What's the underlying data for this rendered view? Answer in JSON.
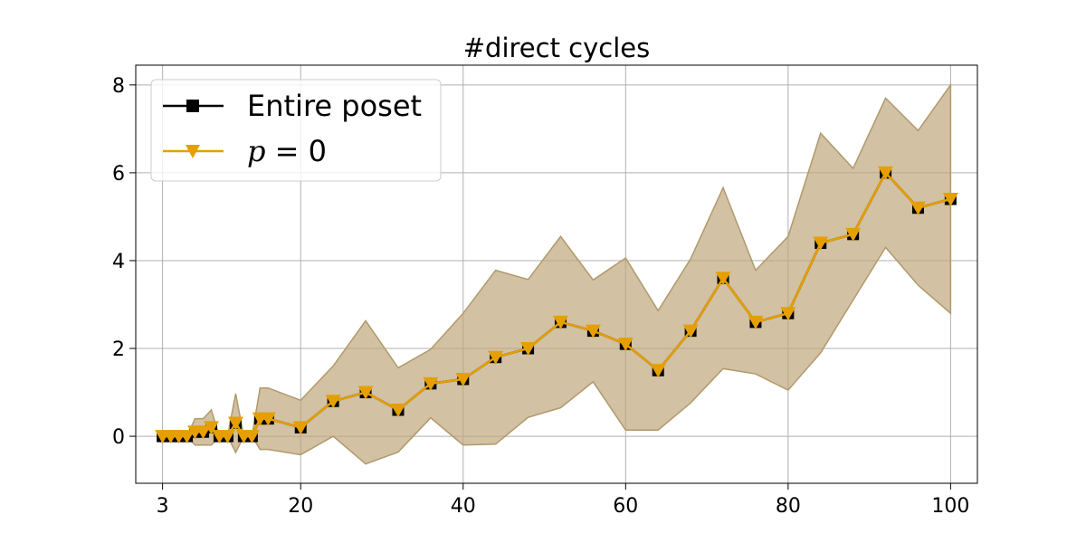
{
  "chart_data": {
    "type": "line",
    "title": "#direct cycles",
    "xlabel": "",
    "ylabel": "",
    "xlim": [
      -0.3,
      103.3
    ],
    "ylim": [
      -1.07,
      8.45
    ],
    "xticks": [
      3,
      20,
      40,
      60,
      80,
      100
    ],
    "yticks": [
      0,
      2,
      4,
      6,
      8
    ],
    "grid": true,
    "legend_position": "top-left",
    "series": [
      {
        "name": "Entire poset",
        "color": "#000000",
        "marker": "square",
        "x": [
          3,
          4,
          5,
          6,
          7,
          8,
          9,
          10,
          11,
          12,
          13,
          14,
          15,
          16,
          20,
          24,
          28,
          32,
          36,
          40,
          44,
          48,
          52,
          56,
          60,
          64,
          68,
          72,
          76,
          80,
          84,
          88,
          92,
          96,
          100
        ],
        "y": [
          0,
          0,
          0,
          0,
          0.1,
          0.1,
          0.2,
          0,
          0,
          0.3,
          0,
          0,
          0.4,
          0.4,
          0.2,
          0.8,
          1.0,
          0.6,
          1.2,
          1.3,
          1.8,
          2.0,
          2.6,
          2.4,
          2.1,
          1.5,
          2.4,
          3.6,
          2.6,
          2.8,
          4.4,
          4.6,
          6.0,
          5.2,
          5.4
        ]
      },
      {
        "name": "p = 0",
        "name_prefix": "p",
        "name_suffix": " = 0",
        "color": "#e69f00",
        "marker": "triangle-down",
        "x": [
          3,
          4,
          5,
          6,
          7,
          8,
          9,
          10,
          11,
          12,
          13,
          14,
          15,
          16,
          20,
          24,
          28,
          32,
          36,
          40,
          44,
          48,
          52,
          56,
          60,
          64,
          68,
          72,
          76,
          80,
          84,
          88,
          92,
          96,
          100
        ],
        "y": [
          0,
          0,
          0,
          0,
          0.1,
          0.1,
          0.2,
          0,
          0,
          0.3,
          0,
          0,
          0.4,
          0.4,
          0.2,
          0.8,
          1.0,
          0.6,
          1.2,
          1.3,
          1.8,
          2.0,
          2.6,
          2.4,
          2.1,
          1.5,
          2.4,
          3.6,
          2.6,
          2.8,
          4.4,
          4.6,
          6.0,
          5.2,
          5.4
        ],
        "band_upper": [
          0,
          0,
          0,
          0,
          0.4,
          0.4,
          0.6,
          0,
          0,
          0.97,
          0,
          0,
          1.1,
          1.1,
          0.82,
          1.6,
          2.63,
          1.56,
          1.98,
          2.8,
          3.78,
          3.57,
          4.55,
          3.56,
          4.06,
          2.86,
          4.04,
          5.66,
          3.78,
          4.55,
          6.9,
          6.1,
          7.7,
          6.96,
          8.0
        ],
        "band_lower": [
          0,
          0,
          0,
          0,
          -0.2,
          -0.2,
          -0.2,
          0,
          0,
          -0.37,
          0,
          0,
          -0.3,
          -0.3,
          -0.42,
          0,
          -0.63,
          -0.36,
          0.42,
          -0.2,
          -0.18,
          0.43,
          0.65,
          1.24,
          0.14,
          0.14,
          0.76,
          1.54,
          1.42,
          1.05,
          1.9,
          3.1,
          4.3,
          3.44,
          2.8
        ],
        "band_color": "#bfa77a"
      }
    ]
  }
}
